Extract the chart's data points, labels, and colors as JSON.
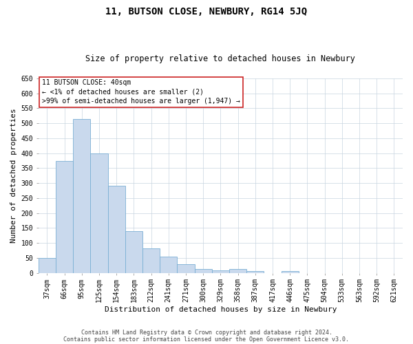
{
  "title": "11, BUTSON CLOSE, NEWBURY, RG14 5JQ",
  "subtitle": "Size of property relative to detached houses in Newbury",
  "xlabel": "Distribution of detached houses by size in Newbury",
  "ylabel": "Number of detached properties",
  "categories": [
    "37sqm",
    "66sqm",
    "95sqm",
    "125sqm",
    "154sqm",
    "183sqm",
    "212sqm",
    "241sqm",
    "271sqm",
    "300sqm",
    "329sqm",
    "358sqm",
    "387sqm",
    "417sqm",
    "446sqm",
    "475sqm",
    "504sqm",
    "533sqm",
    "563sqm",
    "592sqm",
    "621sqm"
  ],
  "values": [
    50,
    375,
    515,
    400,
    292,
    140,
    82,
    55,
    30,
    12,
    8,
    13,
    5,
    0,
    5,
    0,
    0,
    0,
    0,
    0,
    0
  ],
  "bar_color": "#c9d9ed",
  "bar_edge_color": "#7aafd4",
  "ylim": [
    0,
    650
  ],
  "yticks": [
    0,
    50,
    100,
    150,
    200,
    250,
    300,
    350,
    400,
    450,
    500,
    550,
    600,
    650
  ],
  "grid_color": "#c8d4e0",
  "annotation_line1": "11 BUTSON CLOSE: 40sqm",
  "annotation_line2": "← <1% of detached houses are smaller (2)",
  "annotation_line3": ">99% of semi-detached houses are larger (1,947) →",
  "annotation_box_color": "#ffffff",
  "annotation_box_edge": "#cc2222",
  "footnote1": "Contains HM Land Registry data © Crown copyright and database right 2024.",
  "footnote2": "Contains public sector information licensed under the Open Government Licence v3.0.",
  "bg_color": "#ffffff",
  "title_fontsize": 10,
  "subtitle_fontsize": 8.5,
  "axis_label_fontsize": 8,
  "tick_fontsize": 7,
  "annotation_fontsize": 7,
  "footnote_fontsize": 6
}
